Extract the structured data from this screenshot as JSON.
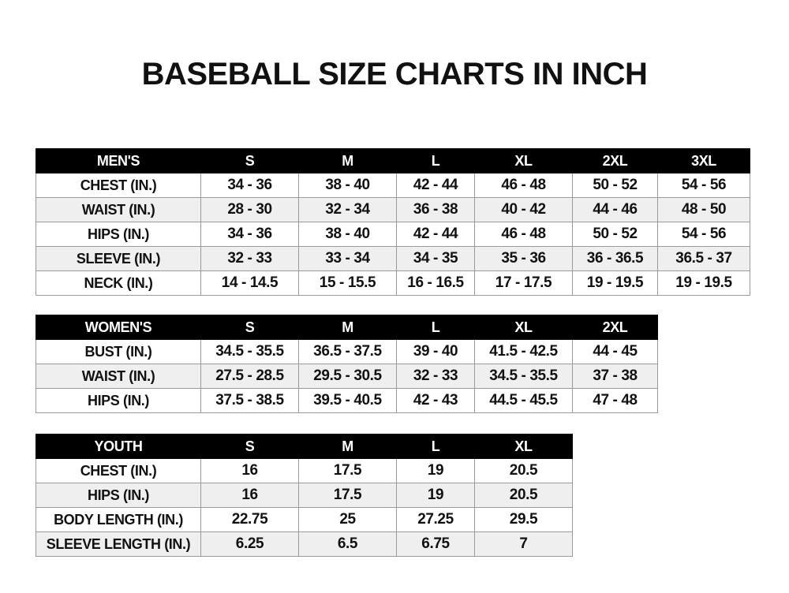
{
  "title": "BASEBALL SIZE CHARTS IN INCH",
  "tables": [
    {
      "id": "men",
      "header": [
        "MEN'S",
        "S",
        "M",
        "L",
        "XL",
        "2XL",
        "3XL"
      ],
      "rows": [
        [
          "CHEST (IN.)",
          "34 - 36",
          "38 - 40",
          "42 - 44",
          "46 - 48",
          "50 - 52",
          "54 - 56"
        ],
        [
          "WAIST (IN.)",
          "28 - 30",
          "32 - 34",
          "36 - 38",
          "40 - 42",
          "44 - 46",
          "48 - 50"
        ],
        [
          "HIPS (IN.)",
          "34 - 36",
          "38 - 40",
          "42 - 44",
          "46 - 48",
          "50 - 52",
          "54 - 56"
        ],
        [
          "SLEEVE (IN.)",
          "32 - 33",
          "33 - 34",
          "34 - 35",
          "35 - 36",
          "36 - 36.5",
          "36.5 - 37"
        ],
        [
          "NECK (IN.)",
          "14 - 14.5",
          "15 - 15.5",
          "16 - 16.5",
          "17 - 17.5",
          "19 - 19.5",
          "19 - 19.5"
        ]
      ]
    },
    {
      "id": "women",
      "header": [
        "WOMEN'S",
        "S",
        "M",
        "L",
        "XL",
        "2XL"
      ],
      "rows": [
        [
          "BUST (IN.)",
          "34.5 - 35.5",
          "36.5 - 37.5",
          "39 - 40",
          "41.5 - 42.5",
          "44 - 45"
        ],
        [
          "WAIST (IN.)",
          "27.5 - 28.5",
          "29.5 - 30.5",
          "32 - 33",
          "34.5 - 35.5",
          "37 - 38"
        ],
        [
          "HIPS (IN.)",
          "37.5 - 38.5",
          "39.5 - 40.5",
          "42 - 43",
          "44.5 - 45.5",
          "47 - 48"
        ]
      ]
    },
    {
      "id": "youth",
      "header": [
        "YOUTH",
        "S",
        "M",
        "L",
        "XL"
      ],
      "rows": [
        [
          "CHEST (IN.)",
          "16",
          "17.5",
          "19",
          "20.5"
        ],
        [
          "HIPS (IN.)",
          "16",
          "17.5",
          "19",
          "20.5"
        ],
        [
          "BODY LENGTH (IN.)",
          "22.75",
          "25",
          "27.25",
          "29.5"
        ],
        [
          "SLEEVE LENGTH (IN.)",
          "6.25",
          "6.5",
          "6.75",
          "7"
        ]
      ]
    }
  ]
}
